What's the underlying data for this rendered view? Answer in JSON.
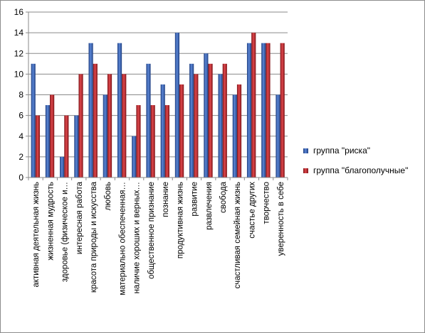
{
  "chart_data": {
    "type": "bar",
    "title": "",
    "xlabel": "",
    "ylabel": "",
    "ylim": [
      0,
      16
    ],
    "yticks": [
      0,
      2,
      4,
      6,
      8,
      10,
      12,
      14,
      16
    ],
    "grid": true,
    "legend_position": "right",
    "categories": [
      "активная деятельная жизнь",
      "жизненная мудрость",
      "здоровье (физическое и…",
      "интересная работа",
      "красота природы и искусства",
      "любовь",
      "материально обеспеченная…",
      "наличие хороших и верных…",
      "общественное признание",
      "познание",
      "продуктивная жизнь",
      "развитие",
      "развлечения",
      "свобода",
      "счастливая семейная жизнь",
      "счастье других",
      "творчество",
      "уверенность в себе"
    ],
    "series": [
      {
        "name": "группа \"риска\"",
        "color": "#3a64b8",
        "values": [
          11,
          7,
          2,
          6,
          13,
          8,
          13,
          4,
          11,
          9,
          14,
          11,
          12,
          10,
          8,
          13,
          13,
          8
        ]
      },
      {
        "name": "группа \"благополучные\"",
        "color": "#c0272d",
        "values": [
          6,
          8,
          6,
          10,
          11,
          10,
          10,
          7,
          7,
          7,
          9,
          10,
          11,
          11,
          9,
          14,
          13,
          13
        ]
      }
    ]
  }
}
